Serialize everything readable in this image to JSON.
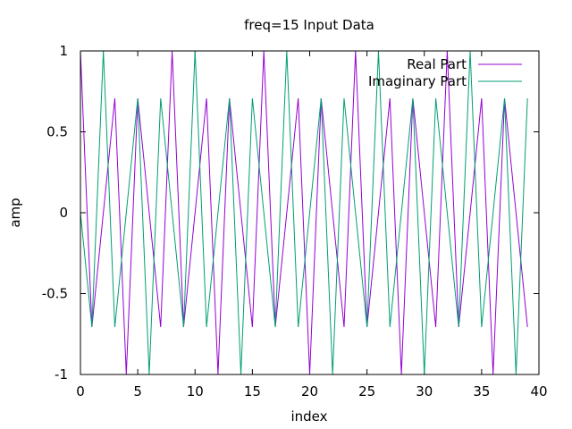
{
  "chart_data": {
    "type": "line",
    "title": "freq=15 Input Data",
    "xlabel": "index",
    "ylabel": "amp",
    "xlim": [
      0,
      40
    ],
    "ylim": [
      -1,
      1
    ],
    "xticks": [
      0,
      5,
      10,
      15,
      20,
      25,
      30,
      35,
      40
    ],
    "yticks": [
      -1,
      -0.5,
      0,
      0.5,
      1
    ],
    "xtick_labels": [
      "0",
      "5",
      "10",
      "15",
      "20",
      "25",
      "30",
      "35",
      "40"
    ],
    "ytick_labels": [
      "-1",
      "-0.5",
      "0",
      "0.5",
      "1"
    ],
    "grid": false,
    "legend": "top-right",
    "x": [
      0,
      1,
      2,
      3,
      4,
      5,
      6,
      7,
      8,
      9,
      10,
      11,
      12,
      13,
      14,
      15,
      16,
      17,
      18,
      19,
      20,
      21,
      22,
      23,
      24,
      25,
      26,
      27,
      28,
      29,
      30,
      31,
      32,
      33,
      34,
      35,
      36,
      37,
      38,
      39
    ],
    "series": [
      {
        "name": "Real Part",
        "color": "#9400d3",
        "values": [
          1,
          -0.707,
          0,
          0.707,
          -1,
          0.707,
          0,
          -0.707,
          1,
          -0.707,
          0,
          0.707,
          -1,
          0.707,
          0,
          -0.707,
          1,
          -0.707,
          0,
          0.707,
          -1,
          0.707,
          0,
          -0.707,
          1,
          -0.707,
          0,
          0.707,
          -1,
          0.707,
          0,
          -0.707,
          1,
          -0.707,
          0,
          0.707,
          -1,
          0.707,
          0,
          -0.707
        ]
      },
      {
        "name": "Imaginary Part",
        "color": "#009e73",
        "values": [
          0,
          -0.707,
          1,
          -0.707,
          0,
          0.707,
          -1,
          0.707,
          0,
          -0.707,
          1,
          -0.707,
          0,
          0.707,
          -1,
          0.707,
          0,
          -0.707,
          1,
          -0.707,
          0,
          0.707,
          -1,
          0.707,
          0,
          -0.707,
          1,
          -0.707,
          0,
          0.707,
          -1,
          0.707,
          0,
          -0.707,
          1,
          -0.707,
          0,
          0.707,
          -1,
          0.707
        ]
      }
    ]
  }
}
